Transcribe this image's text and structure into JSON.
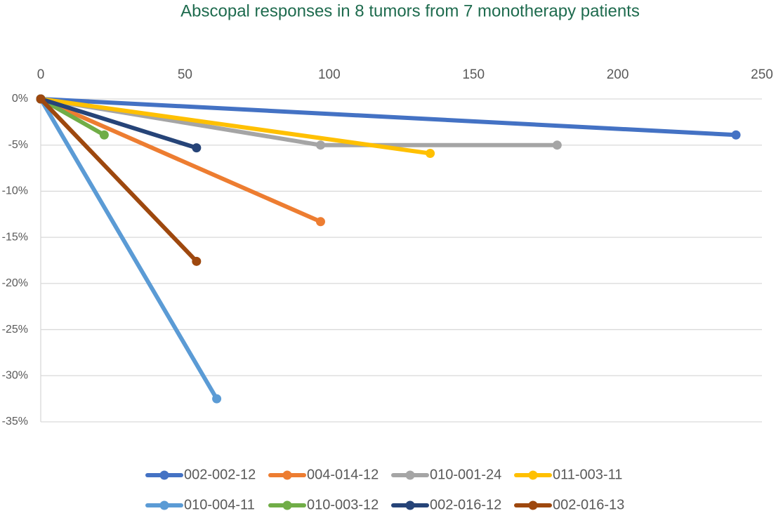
{
  "chart_data": {
    "type": "line",
    "title": "Abscopal responses in 8 tumors from 7 monotherapy patients",
    "xlim": [
      0,
      250
    ],
    "xticks": [
      0,
      50,
      100,
      150,
      200,
      250
    ],
    "ylim": [
      -35,
      0
    ],
    "yticks": [
      {
        "value": 0,
        "label": "0%"
      },
      {
        "value": -5,
        "label": "-5%"
      },
      {
        "value": -10,
        "label": "-10%"
      },
      {
        "value": -15,
        "label": "-15%"
      },
      {
        "value": -20,
        "label": "-20%"
      },
      {
        "value": -25,
        "label": "-25%"
      },
      {
        "value": -30,
        "label": "-30%"
      },
      {
        "value": -35,
        "label": "-35%"
      }
    ],
    "grid": true,
    "legend": "bottom",
    "series": [
      {
        "name": "002-002-12",
        "color": "#4472c4",
        "x": [
          0,
          241
        ],
        "values": [
          0,
          -3.9
        ]
      },
      {
        "name": "004-014-12",
        "color": "#ed7d31",
        "x": [
          0,
          97
        ],
        "values": [
          0,
          -13.3
        ]
      },
      {
        "name": "010-001-24",
        "color": "#a5a5a5",
        "x": [
          0,
          97,
          179
        ],
        "values": [
          0,
          -5,
          -5
        ]
      },
      {
        "name": "011-003-11",
        "color": "#ffc000",
        "x": [
          0,
          135
        ],
        "values": [
          0,
          -5.9
        ]
      },
      {
        "name": "010-004-11",
        "color": "#5b9bd5",
        "x": [
          0,
          61
        ],
        "values": [
          0,
          -32.5
        ]
      },
      {
        "name": "010-003-12",
        "color": "#70ad47",
        "x": [
          0,
          22
        ],
        "values": [
          0,
          -3.9
        ]
      },
      {
        "name": "002-016-12",
        "color": "#264478",
        "x": [
          0,
          54
        ],
        "values": [
          0,
          -5.3
        ]
      },
      {
        "name": "002-016-13",
        "color": "#9e480e",
        "x": [
          0,
          54
        ],
        "values": [
          0,
          -17.6
        ]
      }
    ]
  }
}
